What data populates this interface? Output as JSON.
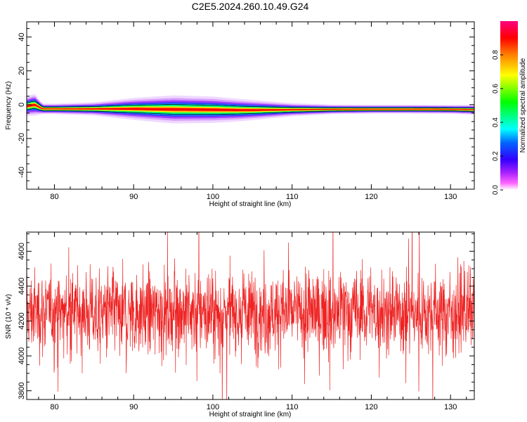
{
  "figure": {
    "title": "C2E5.2024.260.10.49.G24"
  },
  "chart_data": [
    {
      "type": "heatmap",
      "title": "",
      "xlabel": "Height of straight line (km)",
      "ylabel": "Frequency (Hz)",
      "xlim": [
        76.5,
        133
      ],
      "ylim": [
        -50,
        49
      ],
      "xticks": [
        80,
        90,
        100,
        110,
        120,
        130
      ],
      "yticks": [
        -40,
        -20,
        0,
        20,
        40
      ],
      "colorbar": {
        "label": "Normalized spectral amplitude",
        "range": [
          0.0,
          1.0
        ],
        "ticks": [
          0.0,
          0.2,
          0.4,
          0.6,
          0.8
        ],
        "colors": [
          "#ffffff",
          "#ff00ff",
          "#8000ff",
          "#0000ff",
          "#00ffff",
          "#00ff00",
          "#ffff00",
          "#ff8000",
          "#ff0000",
          "#ff0080"
        ]
      },
      "ridge": {
        "description_free_points_x": [
          76.5,
          77.5,
          78.5,
          80,
          85,
          90,
          95,
          100,
          103,
          105,
          110,
          115,
          120,
          125,
          130,
          132.5
        ],
        "center_y": [
          -1,
          0,
          -2.5,
          -2.5,
          -2.5,
          -2.5,
          -2.8,
          -3.0,
          -3.2,
          -3.2,
          -3.0,
          -2.8,
          -2.7,
          -2.7,
          -2.8,
          -3.0
        ],
        "spread": [
          2.2,
          2.5,
          1.2,
          1.2,
          1.5,
          2.5,
          3.2,
          3.0,
          2.6,
          2.3,
          1.5,
          1.1,
          1.0,
          1.0,
          1.0,
          1.1
        ]
      }
    },
    {
      "type": "line",
      "title": "",
      "xlabel": "Height of straight line (km)",
      "ylabel": "SNR (10 * v/v)",
      "xlim": [
        76.5,
        133
      ],
      "ylim": [
        3750,
        4710
      ],
      "xticks": [
        80,
        90,
        100,
        110,
        120,
        130
      ],
      "yticks": [
        3800,
        4000,
        4200,
        4400,
        4600
      ],
      "series": [
        {
          "color": "#ee2222",
          "x_range": [
            76.5,
            133
          ],
          "mean": 4250,
          "typical_min": 3900,
          "typical_max": 4650,
          "approx_points": 1800
        }
      ]
    }
  ]
}
